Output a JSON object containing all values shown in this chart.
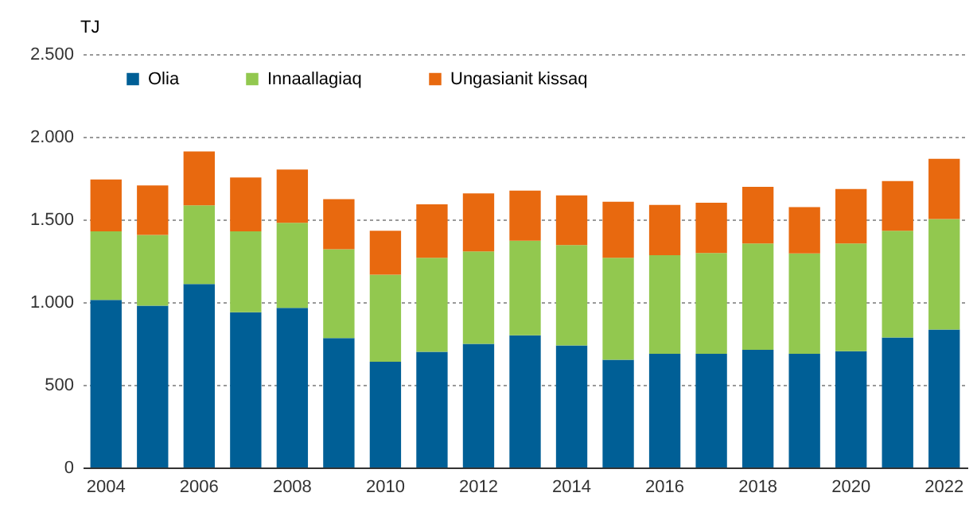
{
  "chart_data": {
    "type": "bar",
    "stacked": true,
    "ylabel": "TJ",
    "categories": [
      "2004",
      null,
      "2006",
      null,
      "2008",
      null,
      "2010",
      null,
      "2012",
      null,
      "2014",
      null,
      "2016",
      null,
      "2018",
      null,
      "2020",
      null,
      "2022"
    ],
    "series": [
      {
        "name": "Olia",
        "color": "#005f96",
        "values": [
          1013,
          978,
          1109,
          939,
          965,
          783,
          639,
          700,
          748,
          799,
          738,
          652,
          687,
          687,
          712,
          687,
          703,
          786,
          834
        ]
      },
      {
        "name": "Innaallagiaq",
        "color": "#92c84f",
        "values": [
          415,
          428,
          476,
          489,
          514,
          537,
          527,
          568,
          559,
          572,
          607,
          616,
          597,
          610,
          643,
          607,
          652,
          645,
          668
        ]
      },
      {
        "name": "Ungasianit kissaq",
        "color": "#e8690f",
        "values": [
          313,
          300,
          326,
          326,
          323,
          303,
          265,
          323,
          351,
          303,
          300,
          339,
          304,
          304,
          342,
          281,
          329,
          301,
          364
        ]
      }
    ],
    "ylim": [
      0,
      2500
    ],
    "yticks": [
      0,
      500,
      {
        "value": 1000,
        "label": "1.000"
      },
      {
        "value": 1500,
        "label": "1.500"
      },
      {
        "value": 2000,
        "label": "2.000"
      },
      {
        "value": 2500,
        "label": "2.500"
      }
    ],
    "grid": "y",
    "legend": "top"
  }
}
